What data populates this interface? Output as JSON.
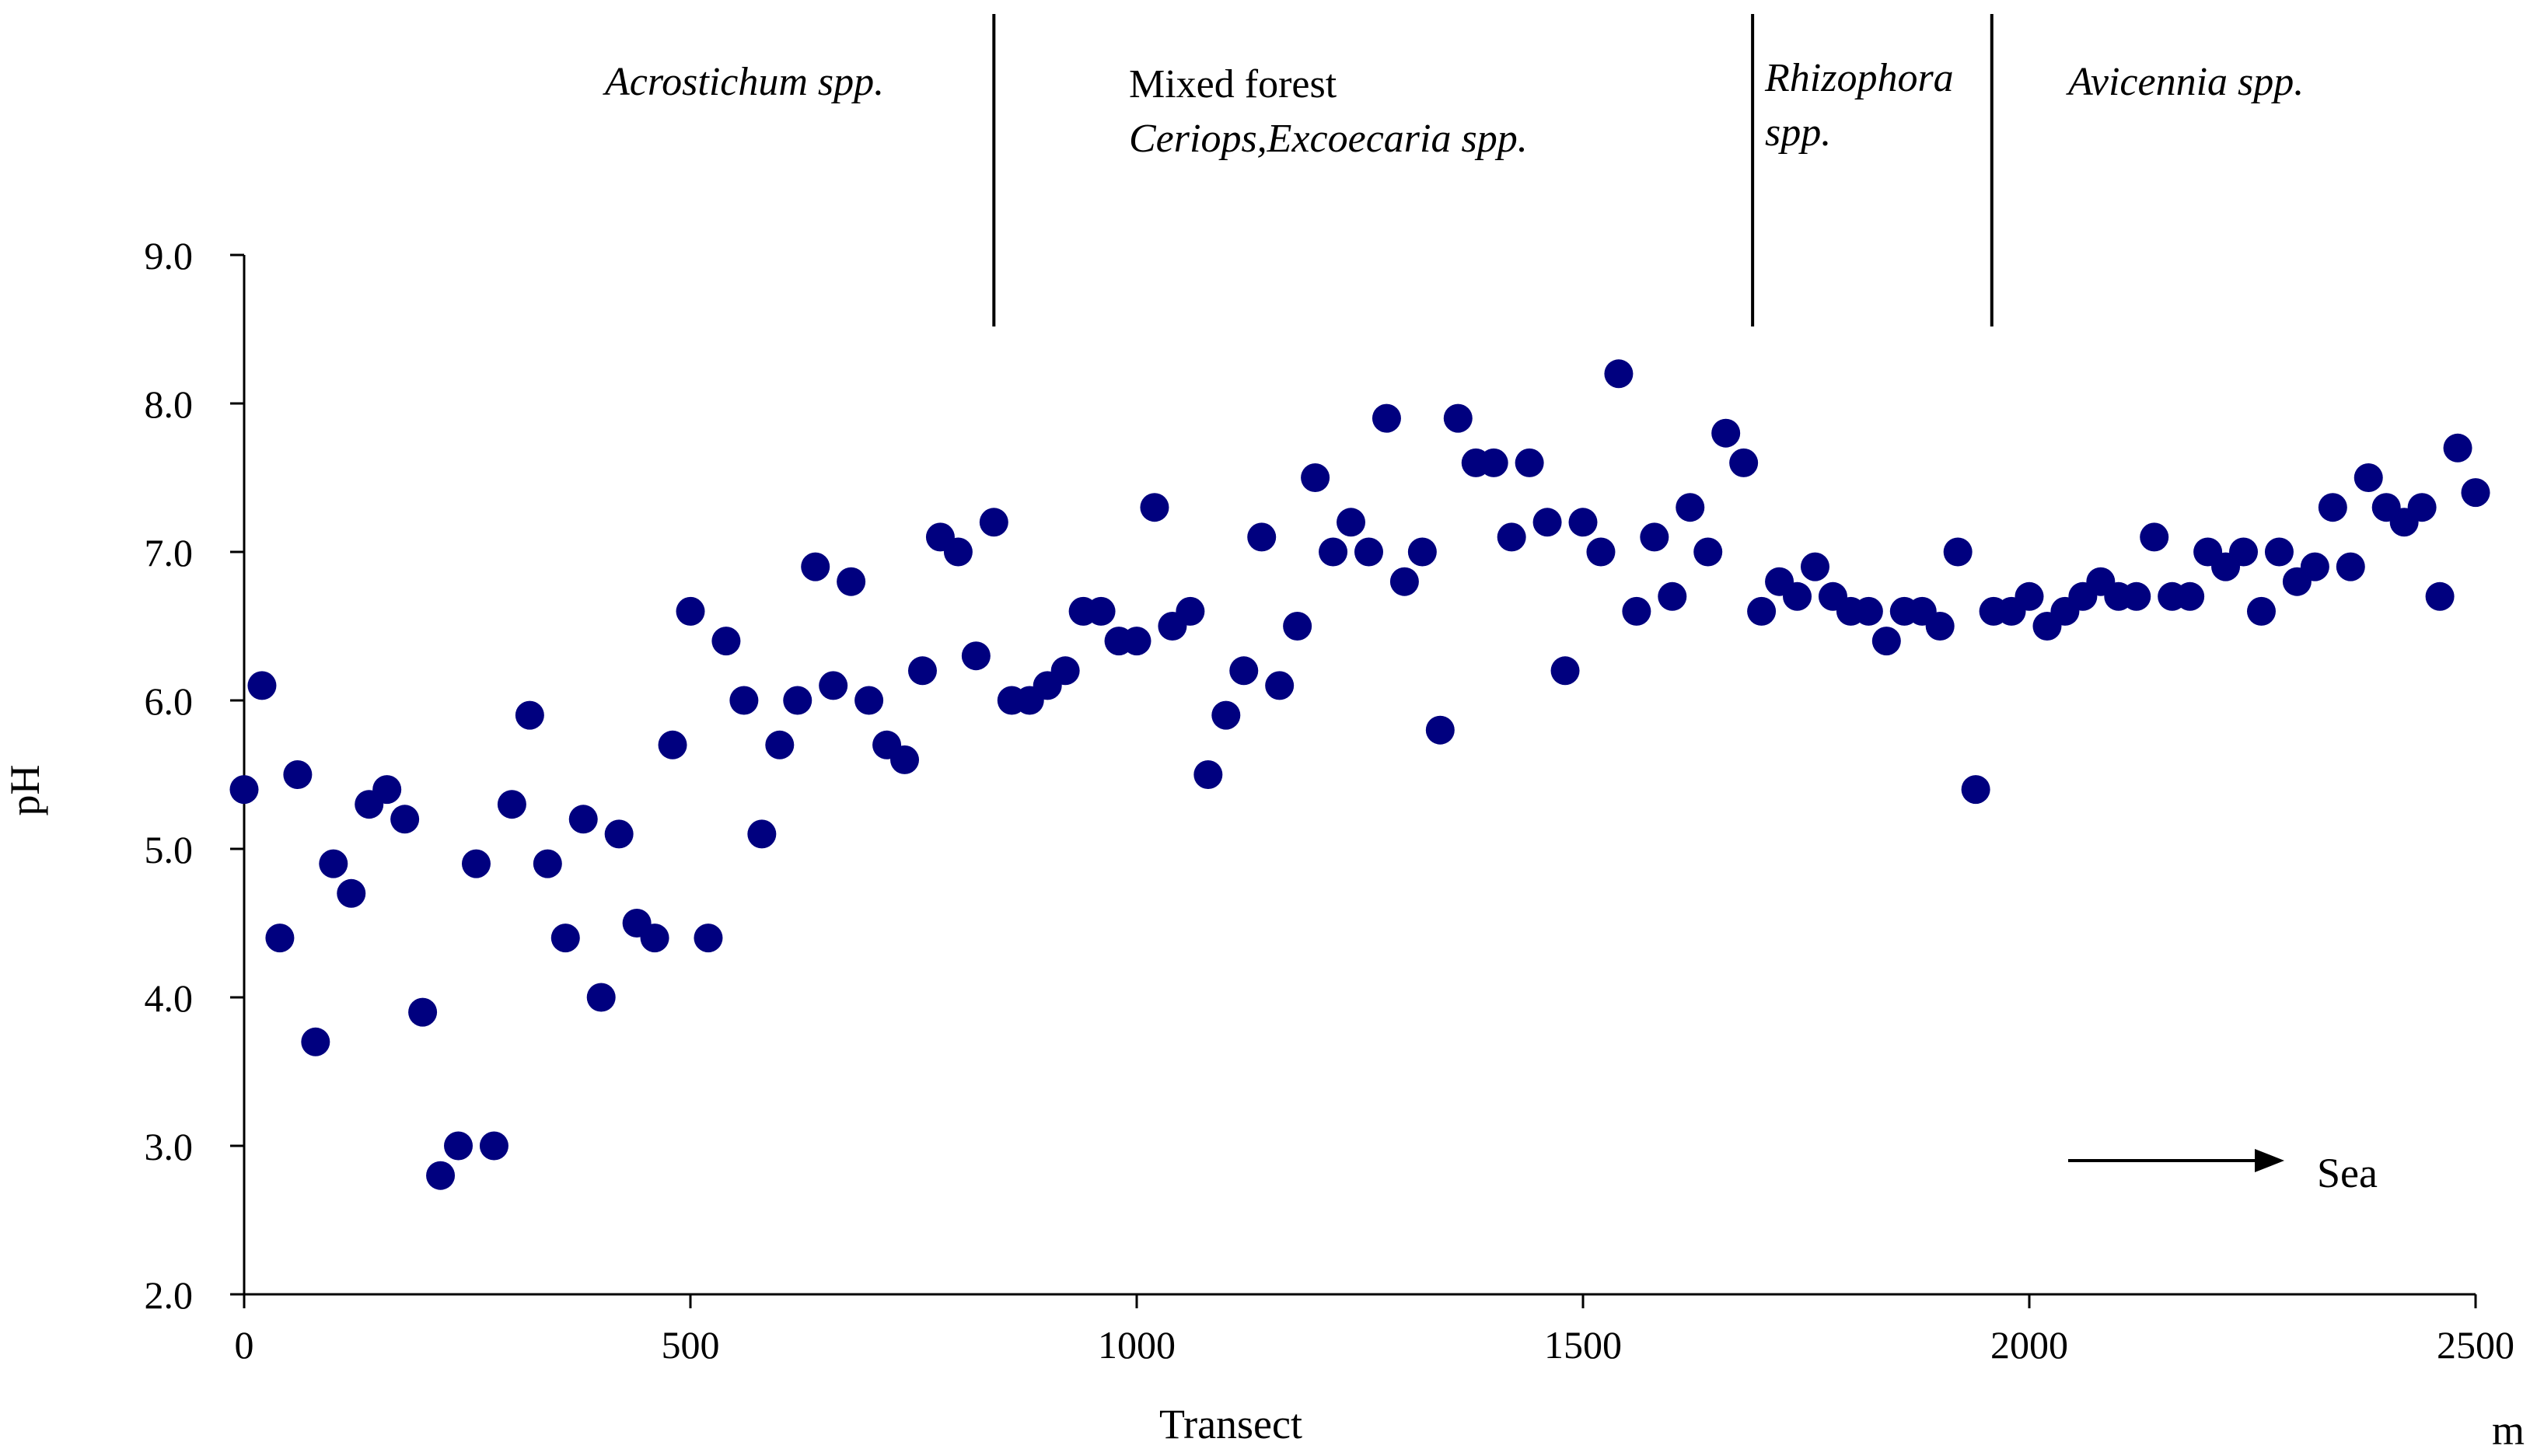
{
  "chart_data": {
    "type": "scatter",
    "title": "",
    "xlabel": "Transect",
    "ylabel": "pH",
    "x_unit": "m",
    "xlim": [
      0,
      2500
    ],
    "ylim": [
      2.0,
      9.0
    ],
    "x_ticks": [
      "0",
      "500",
      "1000",
      "1500",
      "2000",
      "2500"
    ],
    "y_ticks": [
      "2.0",
      "3.0",
      "4.0",
      "5.0",
      "6.0",
      "7.0",
      "8.0",
      "9.0"
    ],
    "grid": false,
    "marker_color": "#00007f",
    "zone_boundaries_x": [
      840,
      1690,
      1958
    ],
    "zones": [
      {
        "lines": [
          "Acrostichum spp."
        ],
        "styles": [
          "italic"
        ]
      },
      {
        "lines": [
          "Mixed forest",
          "Ceriops,Excoecaria spp."
        ],
        "styles": [
          "normal",
          "italic"
        ]
      },
      {
        "lines": [
          "Rhizophora",
          "spp."
        ],
        "styles": [
          "italic",
          "italic"
        ]
      },
      {
        "lines": [
          "Avicennia spp."
        ],
        "styles": [
          "italic"
        ]
      }
    ],
    "annotation": {
      "text": "Sea",
      "direction": "right"
    },
    "x": [
      0,
      20,
      40,
      60,
      80,
      100,
      120,
      140,
      160,
      180,
      200,
      220,
      240,
      260,
      280,
      300,
      320,
      340,
      360,
      380,
      400,
      420,
      440,
      460,
      480,
      500,
      520,
      540,
      560,
      580,
      600,
      620,
      640,
      660,
      680,
      700,
      720,
      740,
      760,
      780,
      800,
      820,
      840,
      860,
      880,
      900,
      920,
      940,
      960,
      980,
      1000,
      1020,
      1040,
      1060,
      1080,
      1100,
      1120,
      1140,
      1160,
      1180,
      1200,
      1220,
      1240,
      1260,
      1280,
      1300,
      1320,
      1340,
      1360,
      1380,
      1400,
      1420,
      1440,
      1460,
      1480,
      1500,
      1520,
      1540,
      1560,
      1580,
      1600,
      1620,
      1640,
      1660,
      1680,
      1700,
      1720,
      1740,
      1760,
      1780,
      1800,
      1820,
      1840,
      1860,
      1880,
      1900,
      1920,
      1940,
      1960,
      1980,
      2000,
      2020,
      2040,
      2060,
      2080,
      2100,
      2120,
      2140,
      2160,
      2180,
      2200,
      2220,
      2240,
      2260,
      2280,
      2300,
      2320,
      2340,
      2360,
      2380,
      2400,
      2420,
      2440,
      2460,
      2480,
      2500
    ],
    "y": [
      5.4,
      6.1,
      4.4,
      5.5,
      3.7,
      4.9,
      4.7,
      5.3,
      5.4,
      5.2,
      3.9,
      2.8,
      3.0,
      4.9,
      3.0,
      5.3,
      5.9,
      4.9,
      4.4,
      5.2,
      4.0,
      5.1,
      4.5,
      4.4,
      5.7,
      6.6,
      4.4,
      6.4,
      6.0,
      5.1,
      5.7,
      6.0,
      6.9,
      6.1,
      6.8,
      6.0,
      5.7,
      5.6,
      6.2,
      7.1,
      7.0,
      6.3,
      7.2,
      6.0,
      6.0,
      6.1,
      6.2,
      6.6,
      6.6,
      6.4,
      6.4,
      7.3,
      6.5,
      6.6,
      5.5,
      5.9,
      6.2,
      7.1,
      6.1,
      6.5,
      7.5,
      7.0,
      7.2,
      7.0,
      7.9,
      6.8,
      7.0,
      5.8,
      7.9,
      7.6,
      7.6,
      7.1,
      7.6,
      7.2,
      6.2,
      7.2,
      7.0,
      8.2,
      6.6,
      7.1,
      6.7,
      7.3,
      7.0,
      7.8,
      7.6,
      6.6,
      6.8,
      6.7,
      6.9,
      6.7,
      6.6,
      6.6,
      6.4,
      6.6,
      6.6,
      6.5,
      7.0,
      5.4,
      6.6,
      6.6,
      6.7,
      6.5,
      6.6,
      6.7,
      6.8,
      6.7,
      6.7,
      7.1,
      6.7,
      6.7,
      7.0,
      6.9,
      7.0,
      6.6,
      7.0,
      6.8,
      6.9,
      7.3,
      6.9,
      7.5,
      7.3,
      7.2,
      7.3,
      6.7,
      7.7,
      7.4
    ]
  }
}
